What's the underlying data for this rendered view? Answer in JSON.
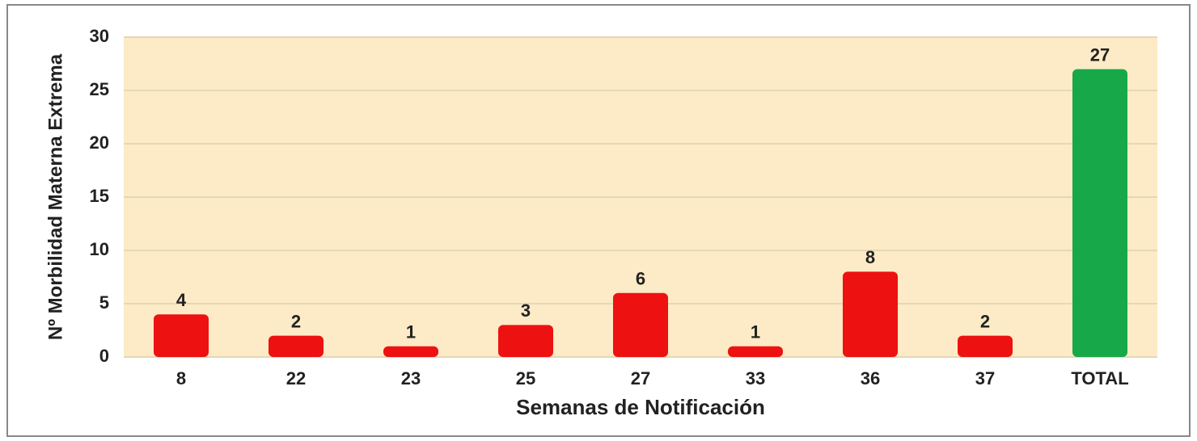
{
  "chart_data": {
    "type": "bar",
    "x_label": "Semanas de Notificación",
    "y_label": "Nº Morbilidad Materna Extrema",
    "categories": [
      "8",
      "22",
      "23",
      "25",
      "27",
      "33",
      "36",
      "37",
      "TOTAL"
    ],
    "values": [
      4,
      2,
      1,
      3,
      6,
      1,
      8,
      2,
      27
    ],
    "colors": [
      "#ee1111",
      "#ee1111",
      "#ee1111",
      "#ee1111",
      "#ee1111",
      "#ee1111",
      "#ee1111",
      "#ee1111",
      "#17a84a"
    ],
    "ylim": [
      0,
      30
    ],
    "yticks": [
      0,
      5,
      10,
      15,
      20,
      25,
      30
    ],
    "grid": true
  }
}
